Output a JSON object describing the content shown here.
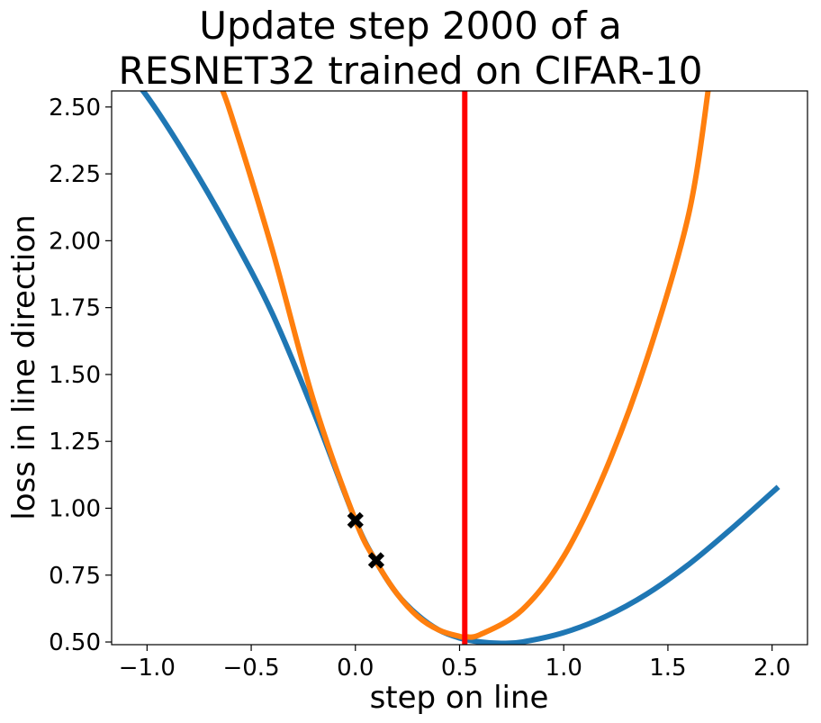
{
  "chart_data": {
    "type": "line",
    "title_lines": [
      "Update step 2000 of a",
      "RESNET32 trained on CIFAR-10"
    ],
    "xlabel": "step on line",
    "ylabel": "loss in line direction",
    "xlim": [
      -1.17,
      2.17
    ],
    "ylim": [
      0.49,
      2.56
    ],
    "x_ticks": [
      -1.0,
      -0.5,
      0.0,
      0.5,
      1.0,
      1.5,
      2.0
    ],
    "x_tick_labels": [
      "−1.0",
      "−0.5",
      "0.0",
      "0.5",
      "1.0",
      "1.5",
      "2.0"
    ],
    "y_ticks": [
      0.5,
      0.75,
      1.0,
      1.25,
      1.5,
      1.75,
      2.0,
      2.25,
      2.5
    ],
    "y_tick_labels": [
      "0.50",
      "0.75",
      "1.00",
      "1.25",
      "1.50",
      "1.75",
      "2.00",
      "2.25",
      "2.50"
    ],
    "grid": false,
    "legend": "none",
    "series": [
      {
        "color": "#1f77b4",
        "x": [
          -1.17,
          -1.0,
          -0.8,
          -0.6,
          -0.4,
          -0.2,
          0.0,
          0.1,
          0.2,
          0.3,
          0.4,
          0.5,
          0.6,
          0.7,
          0.8,
          1.0,
          1.2,
          1.4,
          1.6,
          1.8,
          2.03
        ],
        "y": [
          2.7,
          2.54,
          2.3,
          2.03,
          1.73,
          1.36,
          0.955,
          0.8,
          0.68,
          0.6,
          0.545,
          0.515,
          0.5,
          0.495,
          0.5,
          0.535,
          0.595,
          0.68,
          0.79,
          0.92,
          1.08
        ]
      },
      {
        "color": "#ff7f0e",
        "x": [
          -0.66,
          -0.6,
          -0.4,
          -0.2,
          0.0,
          0.1,
          0.2,
          0.3,
          0.4,
          0.5,
          0.525,
          0.6,
          0.8,
          1.0,
          1.2,
          1.4,
          1.6,
          1.7
        ],
        "y": [
          2.6,
          2.48,
          1.97,
          1.4,
          0.955,
          0.8,
          0.68,
          0.595,
          0.545,
          0.521,
          0.52,
          0.528,
          0.62,
          0.82,
          1.14,
          1.56,
          2.1,
          2.6
        ]
      }
    ],
    "vertical_line": {
      "x": 0.525,
      "color": "#ff0000"
    },
    "markers": {
      "color": "#000000",
      "points": [
        {
          "x": 0.0,
          "y": 0.955
        },
        {
          "x": 0.1,
          "y": 0.805
        }
      ]
    }
  }
}
